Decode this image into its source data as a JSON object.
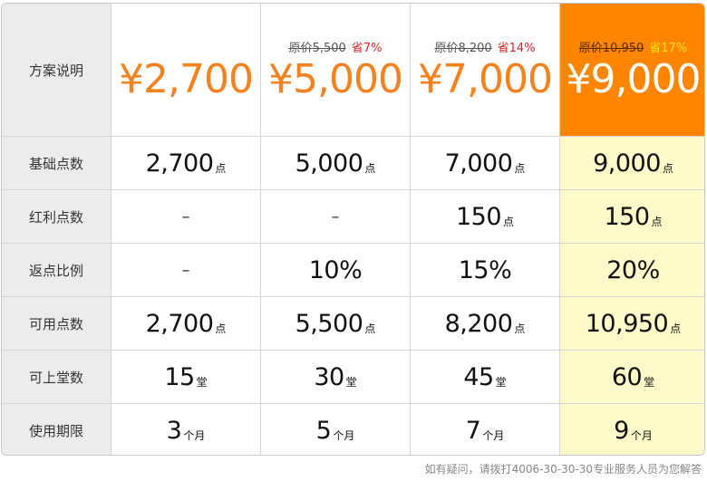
{
  "row_labels": [
    "方案说明",
    "基础点数",
    "红利点数",
    "返点比例",
    "可用点数",
    "可上堂数",
    "使用期限"
  ],
  "plans": [
    {
      "price": "¥2,700",
      "original": "",
      "save": "",
      "base_points": "2,700",
      "base_unit": "点",
      "bonus_points": "–",
      "bonus_unit": "",
      "rebate": "–",
      "usable_points": "2,700",
      "usable_unit": "点",
      "lessons": "15",
      "lessons_unit": "堂",
      "duration": "3",
      "duration_unit": "个月"
    },
    {
      "price": "¥5,000",
      "original": "原价5,500",
      "save": "省7%",
      "base_points": "5,000",
      "base_unit": "点",
      "bonus_points": "–",
      "bonus_unit": "",
      "rebate": "10%",
      "usable_points": "5,500",
      "usable_unit": "点",
      "lessons": "30",
      "lessons_unit": "堂",
      "duration": "5",
      "duration_unit": "个月"
    },
    {
      "price": "¥7,000",
      "original": "原价8,200",
      "save": "省14%",
      "base_points": "7,000",
      "base_unit": "点",
      "bonus_points": "150",
      "bonus_unit": "点",
      "rebate": "15%",
      "usable_points": "8,200",
      "usable_unit": "点",
      "lessons": "45",
      "lessons_unit": "堂",
      "duration": "7",
      "duration_unit": "个月"
    },
    {
      "price": "¥9,000",
      "original": "原价10,950",
      "save": "省17%",
      "base_points": "9,000",
      "base_unit": "点",
      "bonus_points": "150",
      "bonus_unit": "点",
      "rebate": "20%",
      "usable_points": "10,950",
      "usable_unit": "点",
      "lessons": "60",
      "lessons_unit": "堂",
      "duration": "9",
      "duration_unit": "个月"
    }
  ],
  "colors": {
    "accent": "#f5821f",
    "premium_bg": "#ff8400",
    "highlight_bg": "#fdf9c8",
    "label_bg": "#ececec",
    "save_red": "#e02424"
  },
  "footer": "如有疑问，请拨打4006-30-30-30专业服务人员为您解答"
}
